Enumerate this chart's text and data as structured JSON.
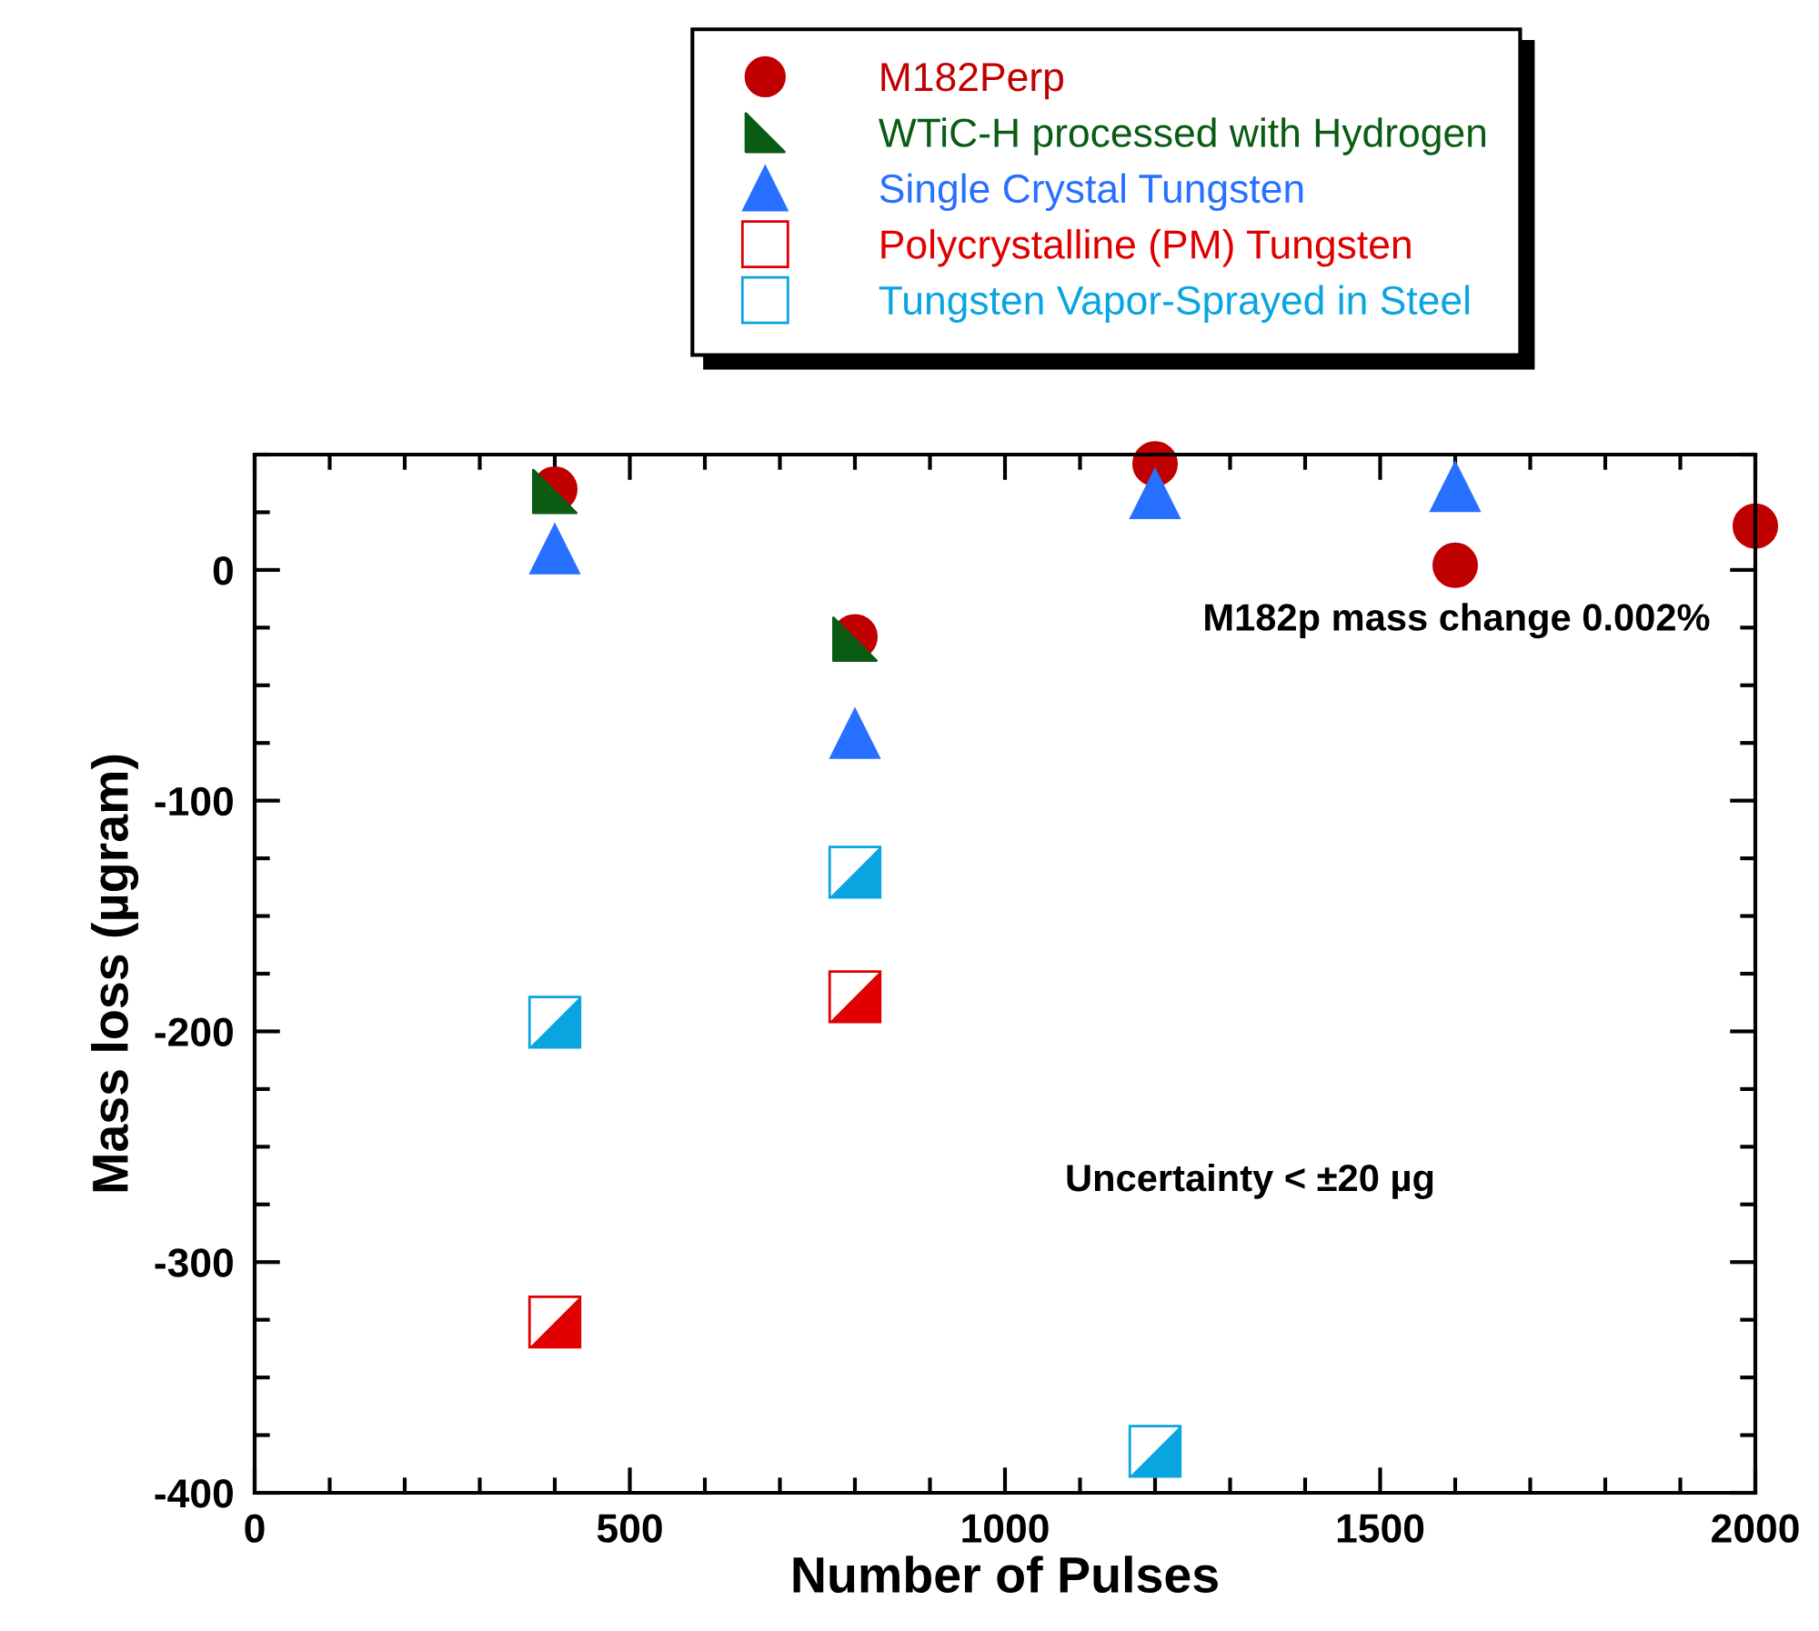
{
  "chart_data": {
    "type": "scatter",
    "xlabel": "Number of Pulses",
    "ylabel": "Mass loss (µgram)",
    "xlim": [
      0,
      2000
    ],
    "xticks": [
      0,
      500,
      1000,
      1500,
      2000
    ],
    "ylim": [
      -400,
      50
    ],
    "yticks": [
      -400,
      -300,
      -200,
      -100,
      0
    ],
    "grid": false,
    "legend": "top",
    "annotations": [
      "M182p mass change 0.002%",
      "Uncertainty < ±20 µg"
    ],
    "series": [
      {
        "name": "M182Perp",
        "color": "#c00000",
        "marker": "circle",
        "x": [
          400,
          800,
          1200,
          1600,
          2000
        ],
        "values": [
          35,
          -29,
          46,
          2,
          19
        ]
      },
      {
        "name": "WTiC-H processed with Hydrogen",
        "color": "#0a5c14",
        "marker": "triangle",
        "x": [
          400,
          800
        ],
        "values": [
          34,
          -30
        ]
      },
      {
        "name": "Single Crystal Tungsten",
        "color": "#2870ff",
        "marker": "triangle",
        "x": [
          400,
          800,
          1200,
          1600
        ],
        "values": [
          9,
          -71,
          33,
          36
        ]
      },
      {
        "name": "Polycrystalline (PM) Tungsten",
        "color": "#e00000",
        "marker": "square",
        "x": [
          400,
          800
        ],
        "values": [
          -326,
          -185
        ]
      },
      {
        "name": "Tungsten Vapor-Sprayed in Steel",
        "color": "#0aa5e0",
        "marker": "square",
        "x": [
          400,
          800,
          1200
        ],
        "values": [
          -196,
          -131,
          -382
        ]
      }
    ]
  }
}
